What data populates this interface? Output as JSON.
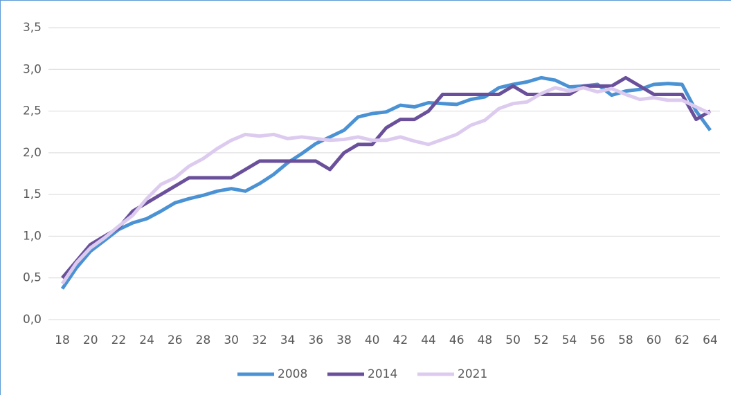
{
  "chart_data": {
    "type": "line",
    "x": [
      18,
      19,
      20,
      21,
      22,
      23,
      24,
      25,
      26,
      27,
      28,
      29,
      30,
      31,
      32,
      33,
      34,
      35,
      36,
      37,
      38,
      39,
      40,
      41,
      42,
      43,
      44,
      45,
      46,
      47,
      48,
      49,
      50,
      51,
      52,
      53,
      54,
      55,
      56,
      57,
      58,
      59,
      60,
      61,
      62,
      63,
      64
    ],
    "series": [
      {
        "name": "2008",
        "color": "#4a92d4",
        "values": [
          0.37,
          0.62,
          0.82,
          0.95,
          1.08,
          1.16,
          1.21,
          1.3,
          1.4,
          1.45,
          1.49,
          1.54,
          1.57,
          1.54,
          1.63,
          1.74,
          1.88,
          1.99,
          2.11,
          2.19,
          2.27,
          2.43,
          2.47,
          2.49,
          2.57,
          2.55,
          2.6,
          2.59,
          2.58,
          2.64,
          2.67,
          2.78,
          2.82,
          2.85,
          2.9,
          2.87,
          2.79,
          2.8,
          2.82,
          2.69,
          2.74,
          2.76,
          2.82,
          2.83,
          2.82,
          2.5,
          2.27
        ]
      },
      {
        "name": "2014",
        "color": "#6a509b",
        "values": [
          0.5,
          0.7,
          0.9,
          1.0,
          1.1,
          1.3,
          1.4,
          1.5,
          1.6,
          1.7,
          1.7,
          1.7,
          1.7,
          1.8,
          1.9,
          1.9,
          1.9,
          1.9,
          1.9,
          1.8,
          2.0,
          2.1,
          2.1,
          2.3,
          2.4,
          2.4,
          2.5,
          2.7,
          2.7,
          2.7,
          2.7,
          2.7,
          2.8,
          2.7,
          2.7,
          2.7,
          2.7,
          2.8,
          2.8,
          2.8,
          2.9,
          2.8,
          2.7,
          2.7,
          2.7,
          2.4,
          2.5
        ]
      },
      {
        "name": "2021",
        "color": "#dccbef",
        "values": [
          0.43,
          0.68,
          0.86,
          0.98,
          1.12,
          1.25,
          1.45,
          1.62,
          1.7,
          1.84,
          1.93,
          2.05,
          2.15,
          2.22,
          2.2,
          2.22,
          2.17,
          2.19,
          2.17,
          2.15,
          2.16,
          2.19,
          2.15,
          2.15,
          2.19,
          2.14,
          2.1,
          2.16,
          2.22,
          2.33,
          2.39,
          2.53,
          2.59,
          2.61,
          2.71,
          2.78,
          2.74,
          2.78,
          2.73,
          2.77,
          2.7,
          2.64,
          2.66,
          2.63,
          2.63,
          2.55,
          2.47
        ]
      }
    ],
    "xlim": [
      18,
      64
    ],
    "xticks": [
      18,
      20,
      22,
      24,
      26,
      28,
      30,
      32,
      34,
      36,
      38,
      40,
      42,
      44,
      46,
      48,
      50,
      52,
      54,
      56,
      58,
      60,
      62,
      64
    ],
    "ylim": [
      0,
      3.5
    ],
    "yticks": [
      {
        "value": 0,
        "label": "0,0"
      },
      {
        "value": 0.5,
        "label": "0,5"
      },
      {
        "value": 1,
        "label": "1,0"
      },
      {
        "value": 1.5,
        "label": "1,5"
      },
      {
        "value": 2,
        "label": "2,0"
      },
      {
        "value": 2.5,
        "label": "2,5"
      },
      {
        "value": 3,
        "label": "3,0"
      },
      {
        "value": 3.5,
        "label": "3,5"
      }
    ],
    "grid": true,
    "legend": "bottom"
  }
}
